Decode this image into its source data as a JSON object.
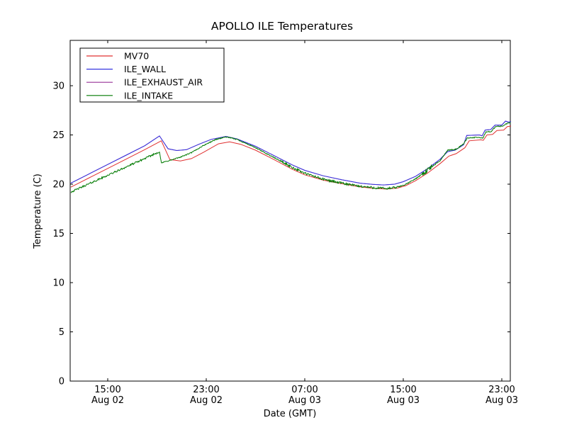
{
  "chart_data": {
    "type": "line",
    "title": "APOLLO ILE Temperatures",
    "xlabel": "Date (GMT)",
    "ylabel": "Temperature (C)",
    "background": "#ffffff",
    "axis_color": "#000000",
    "grid": false,
    "legend_position": "upper left",
    "ylim": [
      0,
      34.6
    ],
    "yticks": [
      0,
      5,
      10,
      15,
      20,
      25,
      30
    ],
    "xticks": [
      {
        "hour": 15,
        "time": "15:00",
        "date": "Aug 02"
      },
      {
        "hour": 23,
        "time": "23:00",
        "date": "Aug 02"
      },
      {
        "hour": 31,
        "time": "07:00",
        "date": "Aug 03"
      },
      {
        "hour": 39,
        "time": "15:00",
        "date": "Aug 03"
      },
      {
        "hour": 47,
        "time": "23:00",
        "date": "Aug 03"
      }
    ],
    "x_domain_hours_from_aug02_0000": [
      11.95,
      47.75
    ],
    "series": [
      {
        "name": "MV70",
        "color": "#e03030",
        "points": [
          [
            12,
            19.7
          ],
          [
            13.5,
            20.65
          ],
          [
            15,
            21.6
          ],
          [
            16.5,
            22.55
          ],
          [
            18,
            23.5
          ],
          [
            19.35,
            24.4
          ],
          [
            20.05,
            22.5
          ],
          [
            20.9,
            22.35
          ],
          [
            21.8,
            22.6
          ],
          [
            22.8,
            23.25
          ],
          [
            24.0,
            24.1
          ],
          [
            24.9,
            24.3
          ],
          [
            25.8,
            24.05
          ],
          [
            27,
            23.45
          ],
          [
            28.5,
            22.5
          ],
          [
            30,
            21.5
          ],
          [
            31,
            20.95
          ],
          [
            32.5,
            20.4
          ],
          [
            34,
            20.05
          ],
          [
            35.5,
            19.72
          ],
          [
            36.5,
            19.58
          ],
          [
            37.6,
            19.5
          ],
          [
            38.5,
            19.6
          ],
          [
            39.2,
            19.85
          ],
          [
            40,
            20.35
          ],
          [
            41,
            21.15
          ],
          [
            42,
            22.1
          ],
          [
            42.7,
            22.85
          ],
          [
            43.3,
            23.1
          ],
          [
            44.0,
            23.7
          ],
          [
            44.35,
            24.4
          ],
          [
            45.3,
            24.5
          ],
          [
            45.5,
            24.45
          ],
          [
            45.8,
            25.0
          ],
          [
            46.25,
            25.05
          ],
          [
            46.6,
            25.45
          ],
          [
            47.15,
            25.5
          ],
          [
            47.45,
            25.85
          ],
          [
            47.75,
            25.9
          ]
        ]
      },
      {
        "name": "ILE_WALL",
        "color": "#3535e0",
        "points": [
          [
            12,
            20.1
          ],
          [
            13.5,
            21.05
          ],
          [
            15,
            22.0
          ],
          [
            16.5,
            22.95
          ],
          [
            18,
            23.9
          ],
          [
            19.2,
            24.9
          ],
          [
            19.9,
            23.6
          ],
          [
            20.6,
            23.42
          ],
          [
            21.4,
            23.5
          ],
          [
            22.4,
            24.05
          ],
          [
            23.4,
            24.55
          ],
          [
            24.6,
            24.85
          ],
          [
            25.5,
            24.6
          ],
          [
            27,
            23.85
          ],
          [
            28.5,
            22.9
          ],
          [
            30,
            21.95
          ],
          [
            31,
            21.4
          ],
          [
            32.5,
            20.85
          ],
          [
            34,
            20.45
          ],
          [
            35.5,
            20.1
          ],
          [
            36.5,
            19.98
          ],
          [
            37.4,
            19.92
          ],
          [
            38.3,
            20.0
          ],
          [
            39,
            20.25
          ],
          [
            40,
            20.8
          ],
          [
            41,
            21.6
          ],
          [
            42,
            22.55
          ],
          [
            42.6,
            23.3
          ],
          [
            43.2,
            23.45
          ],
          [
            43.9,
            24.0
          ],
          [
            44.15,
            24.95
          ],
          [
            45.2,
            25.0
          ],
          [
            45.4,
            24.9
          ],
          [
            45.65,
            25.5
          ],
          [
            46.1,
            25.55
          ],
          [
            46.45,
            26.0
          ],
          [
            47.0,
            26.0
          ],
          [
            47.3,
            26.4
          ],
          [
            47.55,
            26.3
          ],
          [
            47.75,
            26.35
          ]
        ]
      },
      {
        "name": "ILE_EXHAUST_AIR",
        "color": "#993399",
        "note": "visually hidden beneath ILE_WALL trace",
        "points": [
          [
            12,
            20.1
          ],
          [
            13.5,
            21.05
          ],
          [
            15,
            22.0
          ],
          [
            16.5,
            22.95
          ],
          [
            18,
            23.9
          ],
          [
            19.2,
            24.9
          ],
          [
            19.9,
            23.6
          ],
          [
            20.6,
            23.42
          ],
          [
            21.4,
            23.5
          ],
          [
            22.4,
            24.05
          ],
          [
            23.4,
            24.55
          ],
          [
            24.6,
            24.85
          ],
          [
            25.5,
            24.6
          ],
          [
            27,
            23.85
          ],
          [
            28.5,
            22.9
          ],
          [
            30,
            21.95
          ],
          [
            31,
            21.4
          ],
          [
            32.5,
            20.85
          ],
          [
            34,
            20.45
          ],
          [
            35.5,
            20.1
          ],
          [
            36.5,
            19.98
          ],
          [
            37.4,
            19.92
          ],
          [
            38.3,
            20.0
          ],
          [
            39,
            20.25
          ],
          [
            40,
            20.8
          ],
          [
            41,
            21.6
          ],
          [
            42,
            22.55
          ],
          [
            42.6,
            23.3
          ],
          [
            43.2,
            23.45
          ],
          [
            43.9,
            24.0
          ],
          [
            44.15,
            24.95
          ],
          [
            45.2,
            25.0
          ],
          [
            45.4,
            24.9
          ],
          [
            45.65,
            25.5
          ],
          [
            46.1,
            25.55
          ],
          [
            46.45,
            26.0
          ],
          [
            47.0,
            26.0
          ],
          [
            47.3,
            26.4
          ],
          [
            47.55,
            26.3
          ],
          [
            47.75,
            26.35
          ]
        ]
      },
      {
        "name": "ILE_INTAKE",
        "color": "#007a00",
        "noise": {
          "seed": 42,
          "step_hours": 0.04,
          "base_amp": 0.05,
          "bursts": [
            {
              "from": 12,
              "to": 19.2,
              "amp": 0.09
            },
            {
              "from": 29,
              "to": 38.6,
              "amp": 0.12
            },
            {
              "from": 40.55,
              "to": 41.3,
              "amp": 0.28
            }
          ]
        },
        "points": [
          [
            12,
            19.2
          ],
          [
            13.5,
            20.05
          ],
          [
            15,
            20.9
          ],
          [
            16.5,
            21.75
          ],
          [
            18,
            22.6
          ],
          [
            19.2,
            23.3
          ],
          [
            19.35,
            22.15
          ],
          [
            19.7,
            22.3
          ],
          [
            20.3,
            22.5
          ],
          [
            21.0,
            22.8
          ],
          [
            21.8,
            23.2
          ],
          [
            22.8,
            23.95
          ],
          [
            23.8,
            24.55
          ],
          [
            24.6,
            24.8
          ],
          [
            25.5,
            24.55
          ],
          [
            27,
            23.7
          ],
          [
            28.5,
            22.7
          ],
          [
            30,
            21.7
          ],
          [
            31,
            21.1
          ],
          [
            32.5,
            20.5
          ],
          [
            34,
            20.1
          ],
          [
            35.5,
            19.78
          ],
          [
            36.5,
            19.65
          ],
          [
            37.7,
            19.55
          ],
          [
            38.5,
            19.68
          ],
          [
            39.2,
            19.98
          ],
          [
            40,
            20.55
          ],
          [
            41,
            21.45
          ],
          [
            42,
            22.4
          ],
          [
            42.6,
            23.45
          ],
          [
            43.3,
            23.55
          ],
          [
            43.9,
            24.1
          ],
          [
            44.2,
            24.7
          ],
          [
            45.2,
            24.75
          ],
          [
            45.45,
            24.65
          ],
          [
            45.7,
            25.3
          ],
          [
            46.15,
            25.35
          ],
          [
            46.5,
            25.85
          ],
          [
            47.1,
            25.9
          ],
          [
            47.3,
            26.1
          ],
          [
            47.55,
            26.2
          ],
          [
            47.75,
            26.3
          ]
        ]
      }
    ],
    "draw_order": [
      2,
      0,
      1,
      3
    ]
  }
}
